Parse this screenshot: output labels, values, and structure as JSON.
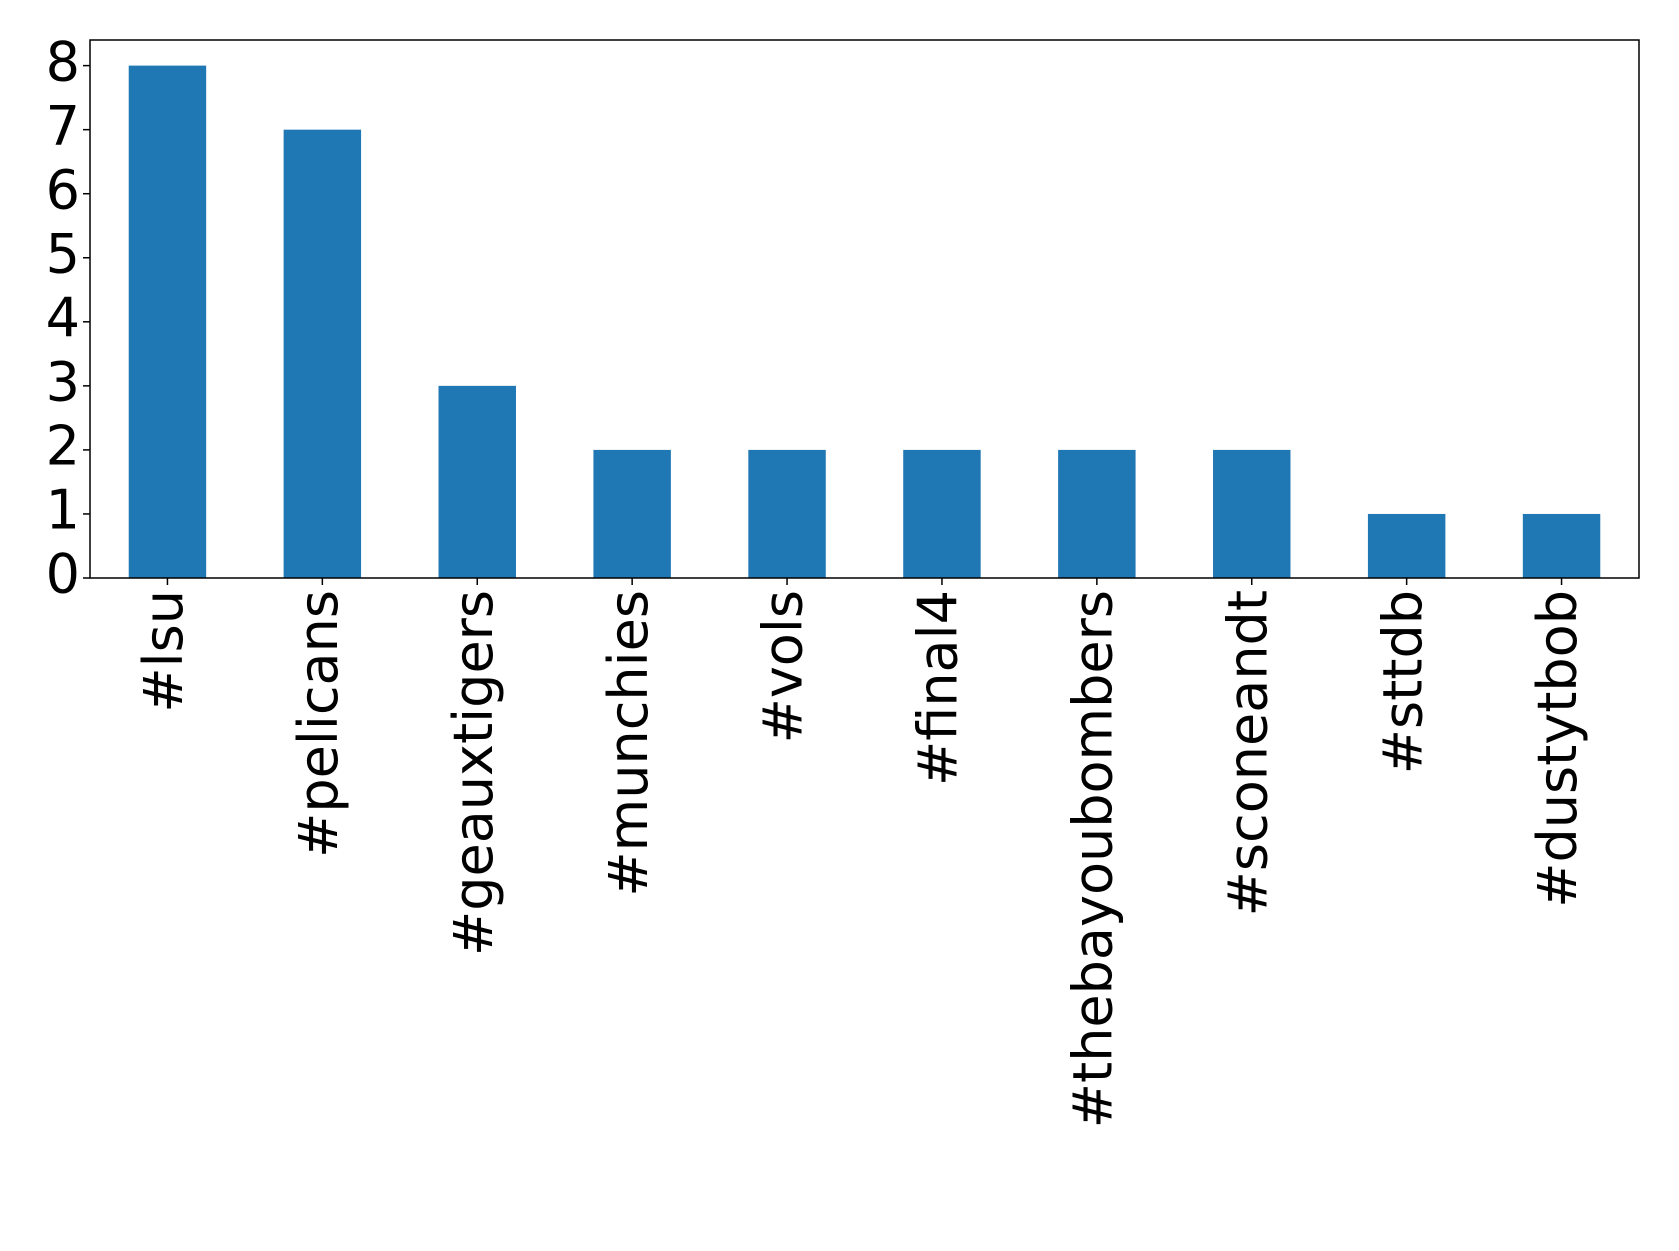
{
  "chart_data": {
    "type": "bar",
    "categories": [
      "#lsu",
      "#pelicans",
      "#geauxtigers",
      "#munchies",
      "#vols",
      "#final4",
      "#thebayoubombers",
      "#sconeandt",
      "#sttdb",
      "#dustytbob"
    ],
    "values": [
      8,
      7,
      3,
      2,
      2,
      2,
      2,
      2,
      1,
      1
    ],
    "color": "#1f77b4",
    "ylim": [
      0,
      8.4
    ],
    "yticks": [
      0,
      1,
      2,
      3,
      4,
      5,
      6,
      7,
      8
    ]
  }
}
